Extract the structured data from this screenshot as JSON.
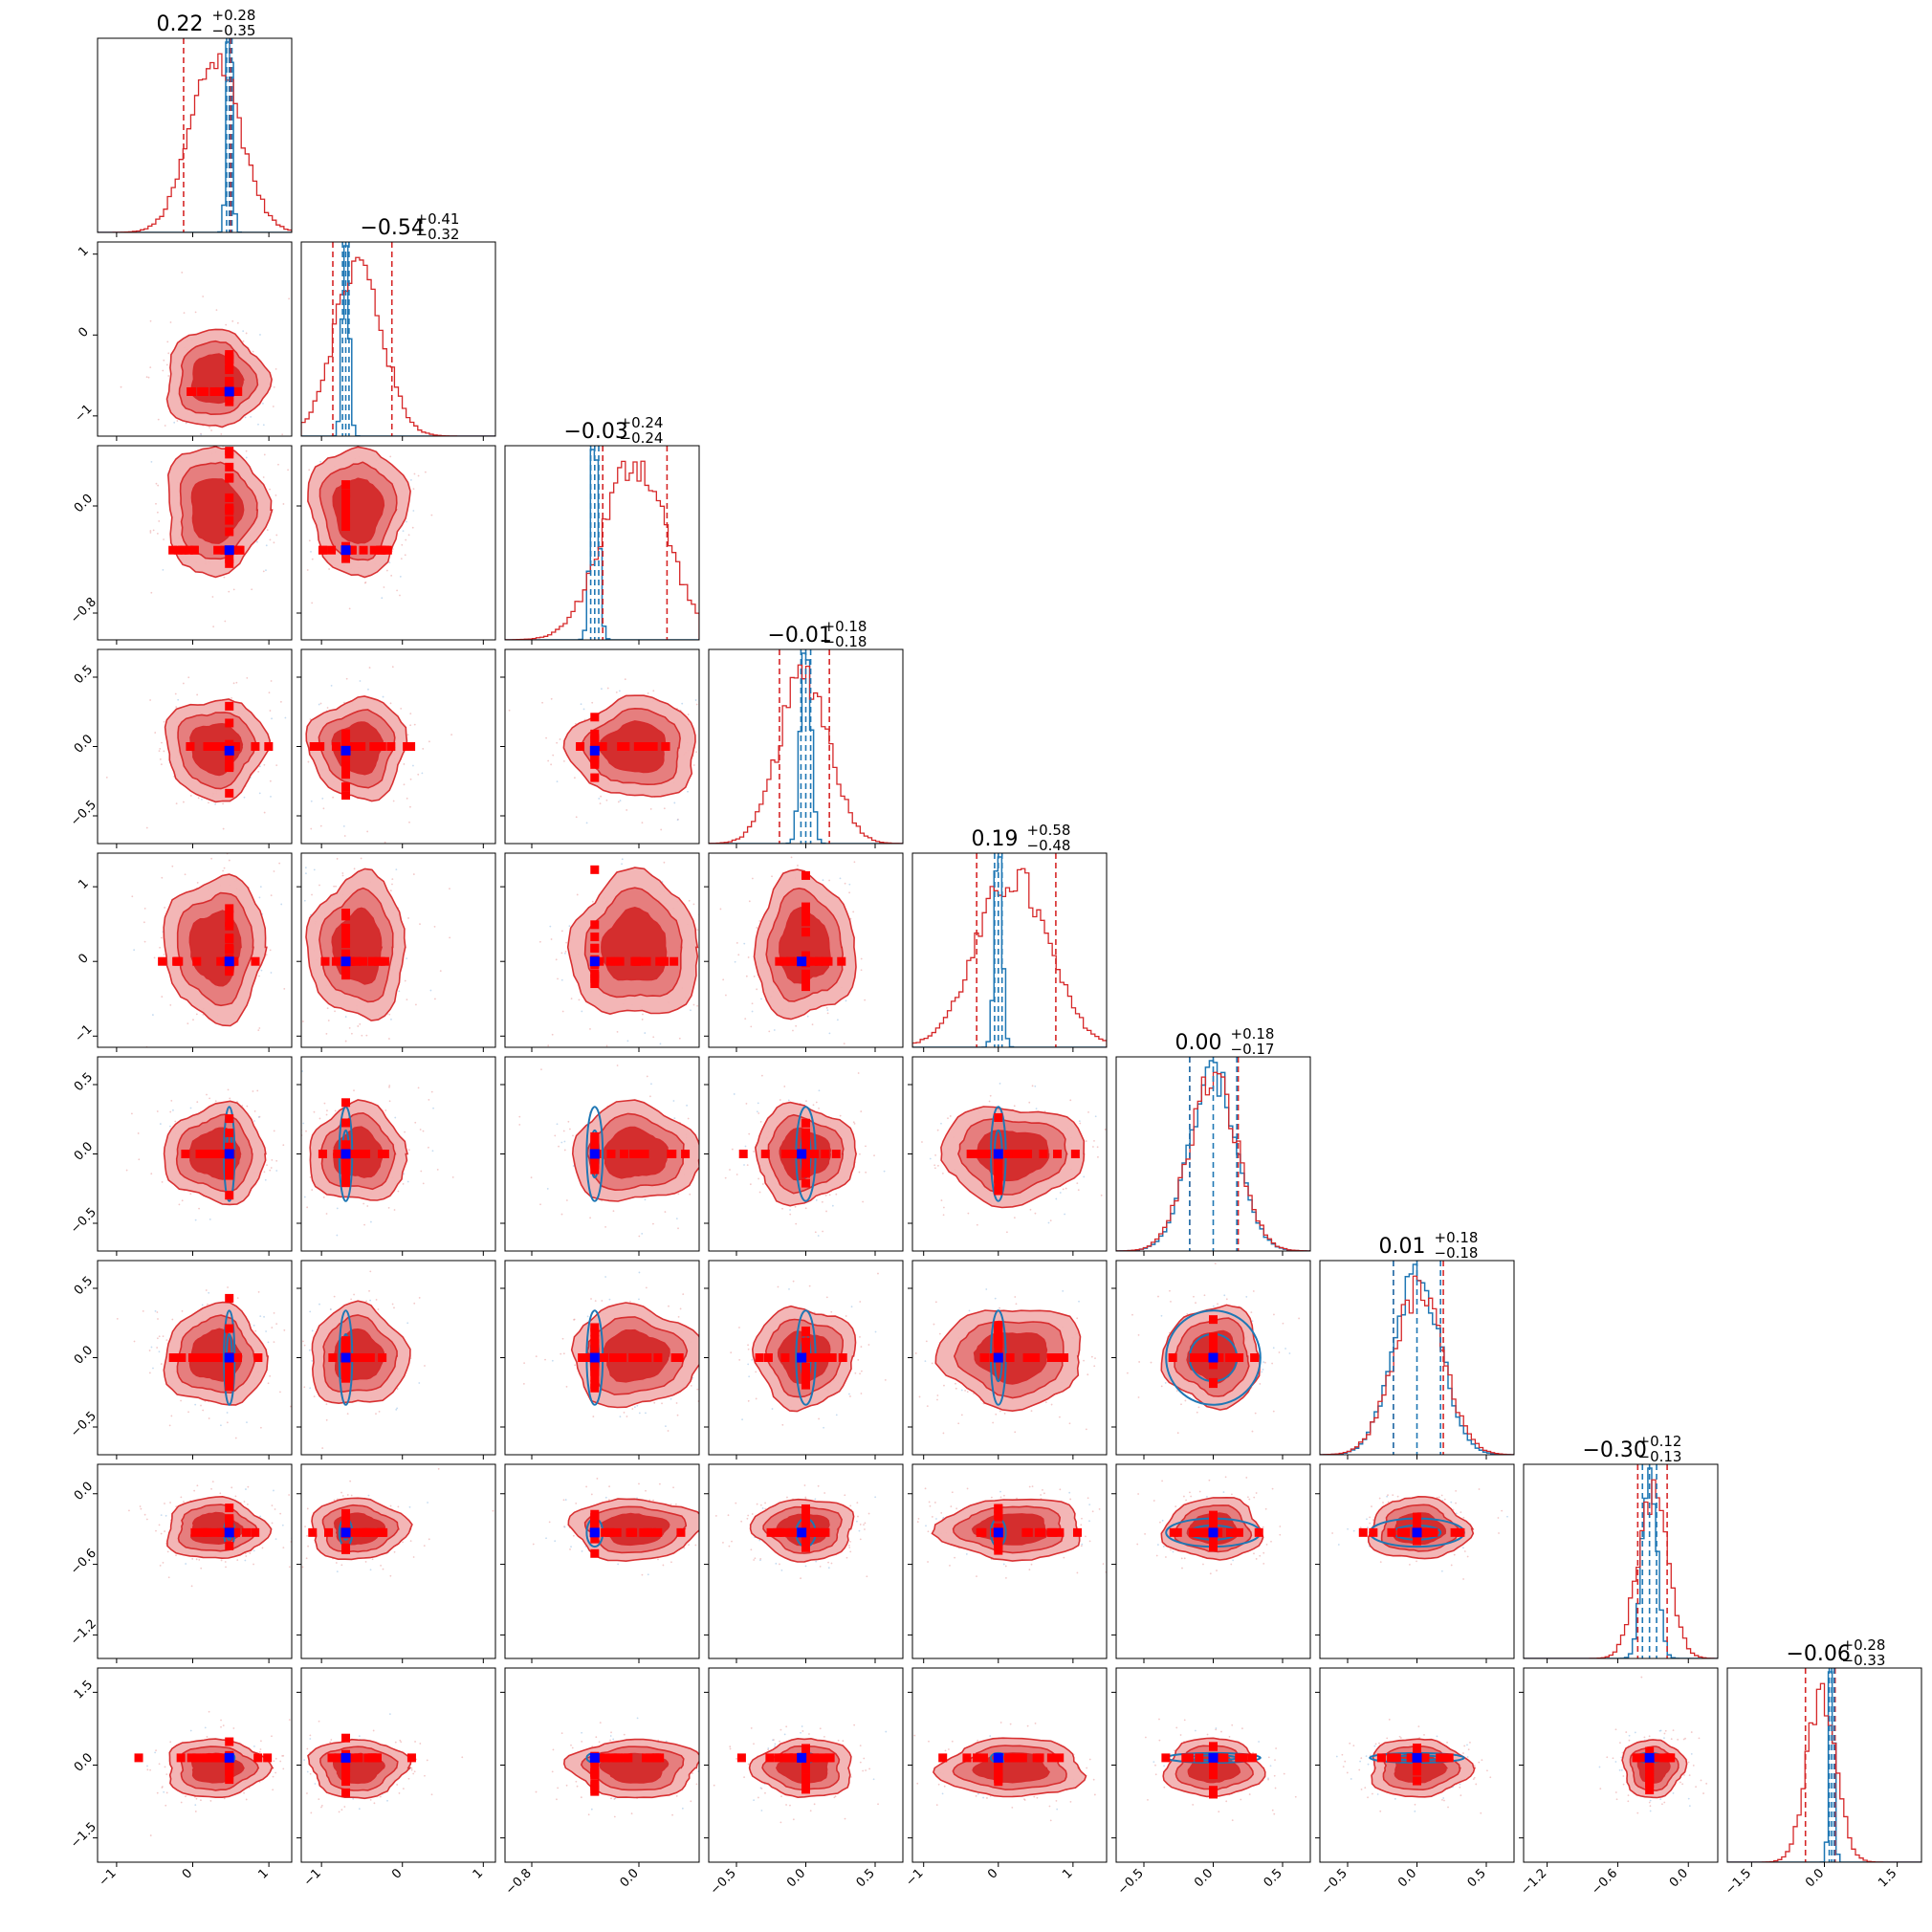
{
  "chart_data": {
    "type": "corner",
    "n_params": 9,
    "colors": {
      "posterior_a": "#d62728",
      "posterior_b": "#1f77b4",
      "truth_marker": "#0000ff",
      "sample_marker": "#ff0000",
      "fill_inner": "#d42a2a",
      "fill_outer": "#f3b3b3"
    },
    "series": [
      {
        "color": "#d62728",
        "role": "broad posterior"
      },
      {
        "color": "#1f77b4",
        "role": "narrow posterior"
      }
    ],
    "parameters": [
      {
        "median": "0.22",
        "plus": "+0.28",
        "minus": "−0.35",
        "range": [
          -1.25,
          1.3
        ],
        "ticks": [
          -1,
          0,
          1
        ],
        "tick_labels": [
          "−1",
          "0",
          "1"
        ],
        "truth": 0.48,
        "blue_center": 0.48,
        "blue_sigma": 0.035,
        "red_center": 0.3,
        "red_sigma": 0.33,
        "q16": -0.12,
        "q84": 0.5
      },
      {
        "median": "−0.54",
        "plus": "+0.41",
        "minus": "−0.32",
        "range": [
          -1.25,
          1.15
        ],
        "ticks": [
          -1,
          0,
          1
        ],
        "tick_labels": [
          "−1",
          "0",
          "1"
        ],
        "truth": -0.7,
        "blue_center": -0.7,
        "blue_sigma": 0.04,
        "red_center": -0.55,
        "red_sigma": 0.3,
        "q16": -0.86,
        "q84": -0.13
      },
      {
        "median": "−0.03",
        "plus": "+0.24",
        "minus": "−0.24",
        "range": [
          -1.0,
          0.45
        ],
        "ticks": [
          -0.8,
          0.0
        ],
        "tick_labels": [
          "−0.8",
          "0.0"
        ],
        "truth": -0.33,
        "blue_center": -0.33,
        "blue_sigma": 0.03,
        "red_center": -0.03,
        "red_sigma": 0.24,
        "q16": -0.27,
        "q84": 0.21
      },
      {
        "median": "−0.01",
        "plus": "+0.18",
        "minus": "−0.18",
        "range": [
          -0.7,
          0.7
        ],
        "ticks": [
          -0.5,
          0.0,
          0.5
        ],
        "tick_labels": [
          "−0.5",
          "0.0",
          "0.5"
        ],
        "truth": -0.03,
        "blue_center": 0.0,
        "blue_sigma": 0.035,
        "red_center": -0.01,
        "red_sigma": 0.18,
        "q16": -0.19,
        "q84": 0.17
      },
      {
        "median": "0.19",
        "plus": "+0.58",
        "minus": "−0.48",
        "range": [
          -1.15,
          1.45
        ],
        "ticks": [
          -1,
          0,
          1
        ],
        "tick_labels": [
          "−1",
          "0",
          "1"
        ],
        "truth": 0.0,
        "blue_center": 0.0,
        "blue_sigma": 0.05,
        "red_center": 0.19,
        "red_sigma": 0.48,
        "q16": -0.29,
        "q84": 0.77
      },
      {
        "median": "0.00",
        "plus": "+0.18",
        "minus": "−0.17",
        "range": [
          -0.7,
          0.7
        ],
        "ticks": [
          -0.5,
          0.0,
          0.5
        ],
        "tick_labels": [
          "−0.5",
          "0.0",
          "0.5"
        ],
        "truth": 0.0,
        "blue_center": 0.0,
        "blue_sigma": 0.17,
        "red_center": 0.0,
        "red_sigma": 0.175,
        "q16": -0.17,
        "q84": 0.18
      },
      {
        "median": "0.01",
        "plus": "+0.18",
        "minus": "−0.18",
        "range": [
          -0.7,
          0.7
        ],
        "ticks": [
          -0.5,
          0.0,
          0.5
        ],
        "tick_labels": [
          "−0.5",
          "0.0",
          "0.5"
        ],
        "truth": 0.0,
        "blue_center": 0.0,
        "blue_sigma": 0.17,
        "red_center": 0.01,
        "red_sigma": 0.18,
        "q16": -0.17,
        "q84": 0.19
      },
      {
        "median": "−0.30",
        "plus": "+0.12",
        "minus": "−0.13",
        "range": [
          -1.4,
          0.25
        ],
        "ticks": [
          -1.2,
          -0.6,
          0.0
        ],
        "tick_labels": [
          "−1.2",
          "−0.6",
          "0.0"
        ],
        "truth": -0.33,
        "blue_center": -0.33,
        "blue_sigma": 0.06,
        "red_center": -0.3,
        "red_sigma": 0.13,
        "q16": -0.43,
        "q84": -0.18
      },
      {
        "median": "−0.06",
        "plus": "+0.28",
        "minus": "−0.33",
        "range": [
          -2.0,
          2.0
        ],
        "ticks": [
          -1.5,
          0.0,
          1.5
        ],
        "tick_labels": [
          "−1.5",
          "0.0",
          "1.5"
        ],
        "truth": 0.15,
        "blue_center": 0.15,
        "blue_sigma": 0.05,
        "red_center": -0.06,
        "red_sigma": 0.3,
        "q16": -0.39,
        "q84": 0.22
      }
    ]
  }
}
